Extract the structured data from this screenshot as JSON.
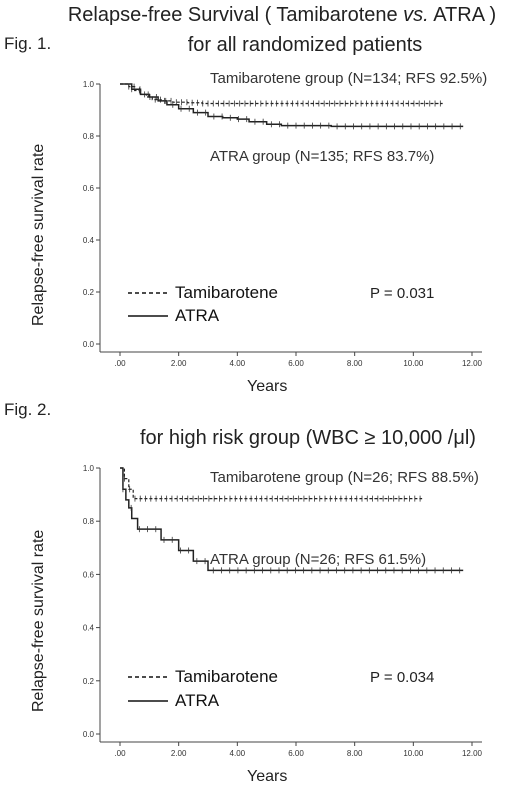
{
  "header": {
    "title_line1_a": "Relapse-free Survival ( Tamibarotene ",
    "title_line1_vs": "vs.",
    "title_line1_b": " ATRA )",
    "title_line2": "for all randomized patients"
  },
  "fig1": {
    "label": "Fig. 1.",
    "annotation_tamibarotene": "Tamibarotene group (N=134; RFS 92.5%)",
    "annotation_atra": "ATRA group (N=135; RFS 83.7%)",
    "legend_tamibarotene": "Tamibarotene",
    "legend_atra": "ATRA",
    "p_value": "P = 0.031",
    "xlabel": "Years",
    "ylabel": "Relapse-free survival rate"
  },
  "fig2": {
    "label": "Fig. 2.",
    "title": "for high risk group (WBC ≥ 10,000 /μl)",
    "annotation_tamibarotene": "Tamibarotene group (N=26; RFS 88.5%)",
    "annotation_atra": "ATRA group (N=26; RFS 61.5%)",
    "legend_tamibarotene": "Tamibarotene",
    "legend_atra": "ATRA",
    "p_value": "P = 0.034",
    "xlabel": "Years",
    "ylabel": "Relapse-free survival rate"
  },
  "chart_data": [
    {
      "type": "line",
      "title": "Relapse-free Survival ( Tamibarotene vs. ATRA ) for all randomized patients",
      "xlabel": "Years",
      "ylabel": "Relapse-free survival rate",
      "xlim": [
        0,
        12
      ],
      "ylim": [
        0,
        1.0
      ],
      "xticks": [
        ".00",
        "2.00",
        "4.00",
        "6.00",
        "8.00",
        "10.00",
        "12.00"
      ],
      "yticks": [
        "0.0",
        "0.2",
        "0.4",
        "0.6",
        "0.8",
        "1.0"
      ],
      "legend_position": "bottom-left",
      "series": [
        {
          "name": "Tamibarotene",
          "style": "dashed",
          "x": [
            0,
            0.3,
            0.5,
            0.7,
            0.9,
            1.1,
            1.4,
            1.8,
            2.3,
            2.8,
            11.0
          ],
          "y": [
            1.0,
            0.99,
            0.975,
            0.96,
            0.95,
            0.94,
            0.935,
            0.93,
            0.928,
            0.925,
            0.925
          ]
        },
        {
          "name": "ATRA",
          "style": "solid",
          "x": [
            0,
            0.4,
            0.7,
            1.0,
            1.3,
            1.6,
            2.0,
            2.5,
            3.0,
            3.5,
            4.0,
            4.4,
            5.0,
            5.5,
            7.2,
            11.7
          ],
          "y": [
            1.0,
            0.98,
            0.96,
            0.95,
            0.935,
            0.92,
            0.905,
            0.89,
            0.875,
            0.87,
            0.865,
            0.855,
            0.845,
            0.84,
            0.837,
            0.837
          ]
        }
      ],
      "censor_marks": true
    },
    {
      "type": "line",
      "title": "for high risk group (WBC ≥ 10,000 /μl)",
      "xlabel": "Years",
      "ylabel": "Relapse-free survival rate",
      "xlim": [
        0,
        12
      ],
      "ylim": [
        0,
        1.0
      ],
      "xticks": [
        ".00",
        "2.00",
        "4.00",
        "6.00",
        "8.00",
        "10.00",
        "12.00"
      ],
      "yticks": [
        "0.0",
        "0.2",
        "0.4",
        "0.6",
        "0.8",
        "1.0"
      ],
      "legend_position": "bottom-left",
      "series": [
        {
          "name": "Tamibarotene",
          "style": "dashed",
          "x": [
            0,
            0.15,
            0.3,
            0.45,
            10.3
          ],
          "y": [
            1.0,
            0.96,
            0.92,
            0.885,
            0.885
          ]
        },
        {
          "name": "ATRA",
          "style": "solid",
          "x": [
            0,
            0.1,
            0.2,
            0.3,
            0.4,
            0.6,
            1.4,
            2.0,
            2.5,
            3.0,
            11.7
          ],
          "y": [
            1.0,
            0.92,
            0.88,
            0.85,
            0.81,
            0.77,
            0.73,
            0.69,
            0.65,
            0.615,
            0.615
          ]
        }
      ],
      "censor_marks": true
    }
  ]
}
